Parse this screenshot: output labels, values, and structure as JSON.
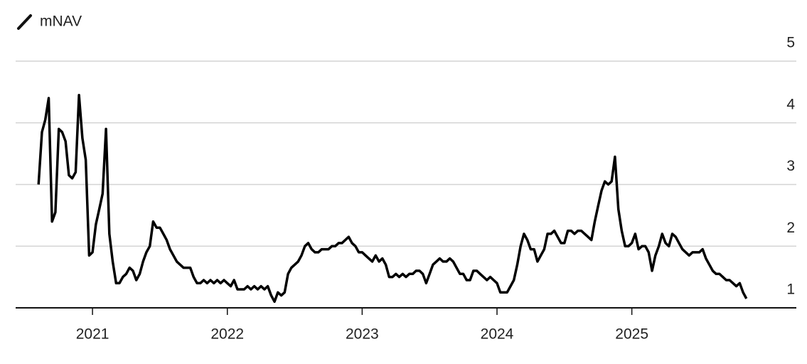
{
  "chart_data": {
    "type": "line",
    "series": [
      {
        "name": "mNAV",
        "color": "#000000",
        "values": [
          3.0,
          3.85,
          4.05,
          4.4,
          2.4,
          2.55,
          3.9,
          3.85,
          3.7,
          3.15,
          3.1,
          3.2,
          4.45,
          3.75,
          3.4,
          1.85,
          1.9,
          2.35,
          2.6,
          2.85,
          3.9,
          2.2,
          1.75,
          1.4,
          1.4,
          1.5,
          1.55,
          1.65,
          1.6,
          1.45,
          1.55,
          1.75,
          1.9,
          2.0,
          2.4,
          2.3,
          2.3,
          2.2,
          2.1,
          1.95,
          1.85,
          1.75,
          1.7,
          1.65,
          1.65,
          1.65,
          1.5,
          1.4,
          1.4,
          1.45,
          1.4,
          1.45,
          1.4,
          1.45,
          1.4,
          1.45,
          1.4,
          1.35,
          1.45,
          1.3,
          1.3,
          1.3,
          1.35,
          1.3,
          1.35,
          1.3,
          1.35,
          1.3,
          1.35,
          1.2,
          1.1,
          1.25,
          1.2,
          1.25,
          1.55,
          1.65,
          1.7,
          1.75,
          1.85,
          2.0,
          2.05,
          1.95,
          1.9,
          1.9,
          1.95,
          1.95,
          1.95,
          2.0,
          2.0,
          2.05,
          2.05,
          2.1,
          2.15,
          2.05,
          2.0,
          1.9,
          1.9,
          1.85,
          1.8,
          1.75,
          1.85,
          1.75,
          1.8,
          1.7,
          1.5,
          1.5,
          1.55,
          1.5,
          1.55,
          1.5,
          1.55,
          1.55,
          1.6,
          1.6,
          1.55,
          1.4,
          1.55,
          1.7,
          1.75,
          1.8,
          1.75,
          1.75,
          1.8,
          1.75,
          1.65,
          1.55,
          1.55,
          1.45,
          1.45,
          1.6,
          1.6,
          1.55,
          1.5,
          1.45,
          1.5,
          1.45,
          1.4,
          1.25,
          1.25,
          1.25,
          1.35,
          1.45,
          1.7,
          2.0,
          2.2,
          2.1,
          1.95,
          1.95,
          1.75,
          1.85,
          1.95,
          2.2,
          2.2,
          2.25,
          2.15,
          2.05,
          2.05,
          2.25,
          2.25,
          2.2,
          2.25,
          2.25,
          2.2,
          2.15,
          2.1,
          2.4,
          2.65,
          2.9,
          3.05,
          3.0,
          3.05,
          3.45,
          2.6,
          2.25,
          2.0,
          2.0,
          2.05,
          2.2,
          1.95,
          2.0,
          2.0,
          1.9,
          1.6,
          1.85,
          2.0,
          2.2,
          2.05,
          2.0,
          2.2,
          2.15,
          2.05,
          1.95,
          1.9,
          1.85,
          1.9,
          1.9,
          1.9,
          1.95,
          1.8,
          1.7,
          1.6,
          1.55,
          1.55,
          1.5,
          1.45,
          1.45,
          1.4,
          1.35,
          1.4,
          1.25,
          1.15
        ]
      }
    ],
    "x": [
      2020.6,
      2020.625,
      2020.65,
      2020.675,
      2020.7,
      2020.725,
      2020.75,
      2020.775,
      2020.8,
      2020.825,
      2020.85,
      2020.875,
      2020.9,
      2020.925,
      2020.95,
      2020.975,
      2021,
      2021.025,
      2021.05,
      2021.075,
      2021.1,
      2021.125,
      2021.15,
      2021.175,
      2021.2,
      2021.225,
      2021.25,
      2021.275,
      2021.3,
      2021.325,
      2021.35,
      2021.375,
      2021.4,
      2021.425,
      2021.45,
      2021.475,
      2021.5,
      2021.525,
      2021.55,
      2021.575,
      2021.6,
      2021.625,
      2021.65,
      2021.675,
      2021.7,
      2021.725,
      2021.75,
      2021.775,
      2021.8,
      2021.825,
      2021.85,
      2021.875,
      2021.9,
      2021.925,
      2021.95,
      2021.975,
      2022,
      2022.025,
      2022.05,
      2022.075,
      2022.1,
      2022.125,
      2022.15,
      2022.175,
      2022.2,
      2022.225,
      2022.25,
      2022.275,
      2022.3,
      2022.325,
      2022.35,
      2022.375,
      2022.4,
      2022.425,
      2022.45,
      2022.475,
      2022.5,
      2022.525,
      2022.55,
      2022.575,
      2022.6,
      2022.625,
      2022.65,
      2022.675,
      2022.7,
      2022.725,
      2022.75,
      2022.775,
      2022.8,
      2022.825,
      2022.85,
      2022.875,
      2022.9,
      2022.925,
      2022.95,
      2022.975,
      2023,
      2023.025,
      2023.05,
      2023.075,
      2023.1,
      2023.125,
      2023.15,
      2023.175,
      2023.2,
      2023.225,
      2023.25,
      2023.275,
      2023.3,
      2023.325,
      2023.35,
      2023.375,
      2023.4,
      2023.425,
      2023.45,
      2023.475,
      2023.5,
      2023.525,
      2023.55,
      2023.575,
      2023.6,
      2023.625,
      2023.65,
      2023.675,
      2023.7,
      2023.725,
      2023.75,
      2023.775,
      2023.8,
      2023.825,
      2023.85,
      2023.875,
      2023.9,
      2023.925,
      2023.95,
      2023.975,
      2024,
      2024.025,
      2024.05,
      2024.075,
      2024.1,
      2024.125,
      2024.15,
      2024.175,
      2024.2,
      2024.225,
      2024.25,
      2024.275,
      2024.3,
      2024.325,
      2024.35,
      2024.375,
      2024.4,
      2024.425,
      2024.45,
      2024.475,
      2024.5,
      2024.525,
      2024.55,
      2024.575,
      2024.6,
      2024.625,
      2024.65,
      2024.675,
      2024.7,
      2024.725,
      2024.75,
      2024.775,
      2024.8,
      2024.825,
      2024.85,
      2024.875,
      2024.9,
      2024.925,
      2024.95,
      2024.975,
      2025,
      2025.025,
      2025.05,
      2025.075,
      2025.1,
      2025.125,
      2025.15,
      2025.175,
      2025.2,
      2025.225,
      2025.25,
      2025.275,
      2025.3,
      2025.325,
      2025.35,
      2025.375,
      2025.4,
      2025.425,
      2025.45,
      2025.475,
      2025.5,
      2025.525,
      2025.55,
      2025.575,
      2025.6,
      2025.625,
      2025.65,
      2025.675,
      2025.7,
      2025.725,
      2025.75,
      2025.775,
      2025.8,
      2025.825,
      2025.85
    ],
    "xlim": [
      2020.43,
      2026.22
    ],
    "xticks": [
      2021,
      2022,
      2023,
      2024,
      2025
    ],
    "ylim": [
      1,
      5
    ],
    "yticks": [
      1,
      2,
      3,
      4,
      5
    ],
    "grid": true
  }
}
